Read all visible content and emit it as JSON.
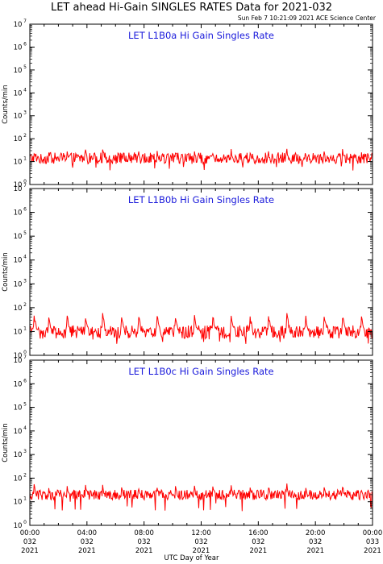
{
  "figure": {
    "title": "LET ahead Hi-Gain SINGLES RATES Data for 2021-032",
    "timestamp": "Sun Feb  7 10:21:09 2021 ACE Science Center",
    "xlabel": "UTC Day of Year"
  },
  "chart_data": [
    {
      "type": "line",
      "title": "LET L1B0a Hi Gain Singles Rate",
      "ylabel": "Counts/min",
      "yscale": "log",
      "ylim": [
        1,
        10000000
      ],
      "xlim": [
        0,
        24
      ],
      "series": [
        {
          "color": "#ff0000",
          "baseline": 15,
          "spike_peak": 30,
          "noise_low": 8,
          "noise_high": 25,
          "min_dip": 4
        }
      ]
    },
    {
      "type": "line",
      "title": "LET L1B0b Hi Gain Singles Rate",
      "ylabel": "Counts/min",
      "yscale": "log",
      "ylim": [
        1,
        10000000
      ],
      "xlim": [
        0,
        24
      ],
      "series": [
        {
          "color": "#ff0000",
          "baseline": 10,
          "spike_peak": 50,
          "noise_low": 5,
          "noise_high": 18,
          "min_dip": 3
        }
      ]
    },
    {
      "type": "line",
      "title": "LET L1B0c Hi Gain Singles Rate",
      "ylabel": "Counts/min",
      "yscale": "log",
      "ylim": [
        1,
        10000000
      ],
      "xlim": [
        0,
        24
      ],
      "series": [
        {
          "color": "#ff0000",
          "baseline": 20,
          "spike_peak": 50,
          "noise_low": 12,
          "noise_high": 32,
          "min_dip": 4
        }
      ]
    }
  ],
  "y_ticks": [
    {
      "base": "10",
      "exp": "0"
    },
    {
      "base": "10",
      "exp": "1"
    },
    {
      "base": "10",
      "exp": "2"
    },
    {
      "base": "10",
      "exp": "3"
    },
    {
      "base": "10",
      "exp": "4"
    },
    {
      "base": "10",
      "exp": "5"
    },
    {
      "base": "10",
      "exp": "6"
    },
    {
      "base": "10",
      "exp": "7"
    }
  ],
  "x_ticks": [
    {
      "hour": 0,
      "time": "00:00",
      "day": "032",
      "year": "2021"
    },
    {
      "hour": 4,
      "time": "04:00",
      "day": "032",
      "year": "2021"
    },
    {
      "hour": 8,
      "time": "08:00",
      "day": "032",
      "year": "2021"
    },
    {
      "hour": 12,
      "time": "12:00",
      "day": "032",
      "year": "2021"
    },
    {
      "hour": 16,
      "time": "16:00",
      "day": "032",
      "year": "2021"
    },
    {
      "hour": 20,
      "time": "20:00",
      "day": "032",
      "year": "2021"
    },
    {
      "hour": 24,
      "time": "00:00",
      "day": "033",
      "year": "2021"
    }
  ],
  "spike_hours": [
    0.3,
    1.3,
    2.6,
    3.9,
    5.1,
    6.4,
    7.6,
    8.9,
    10.2,
    11.5,
    12.8,
    14.1,
    15.4,
    16.7,
    18.0,
    19.3,
    20.6,
    21.9,
    23.2
  ]
}
